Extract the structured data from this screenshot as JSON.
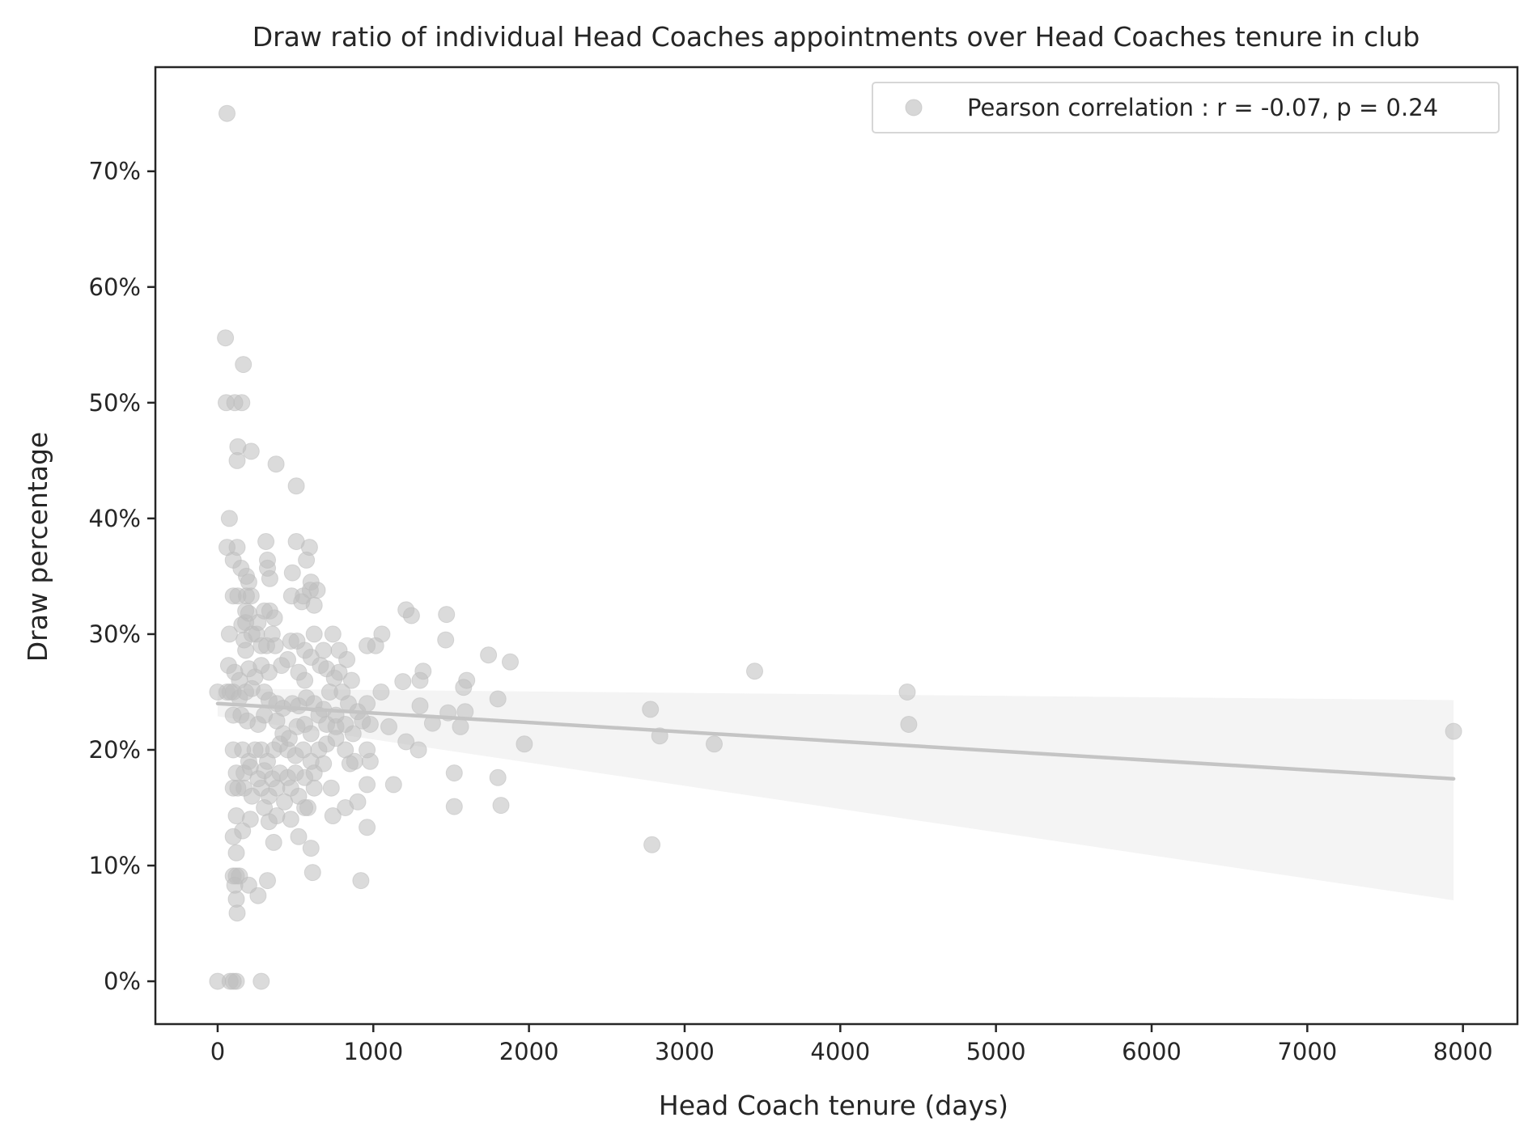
{
  "chart_data": {
    "type": "scatter",
    "title": "Draw ratio of individual Head Coaches appointments over Head Coaches tenure in club",
    "xlabel": "Head Coach tenure (days)",
    "ylabel": "Draw percentage",
    "xlim": [
      -400,
      8350
    ],
    "ylim": [
      -0.037,
      0.79
    ],
    "xticks": [
      0,
      1000,
      2000,
      3000,
      4000,
      5000,
      6000,
      7000,
      8000
    ],
    "xtick_labels": [
      "0",
      "1000",
      "2000",
      "3000",
      "4000",
      "5000",
      "6000",
      "7000",
      "8000"
    ],
    "yticks": [
      0,
      0.1,
      0.2,
      0.3,
      0.4,
      0.5,
      0.6,
      0.7
    ],
    "ytick_labels": [
      "0%",
      "10%",
      "20%",
      "30%",
      "40%",
      "50%",
      "60%",
      "70%"
    ],
    "grid": false,
    "legend": {
      "placement": "top-right",
      "entries": [
        "Pearson correlation : r = -0.07, p = 0.24"
      ]
    },
    "colors": {
      "points": "#bdbdbd",
      "line": "#c4c4c4",
      "band": "#e6e6e6",
      "axes": "#262626"
    },
    "series": [
      {
        "name": "Pearson correlation : r = -0.07, p = 0.24",
        "points": [
          [
            60,
            0.75
          ],
          [
            50,
            0.556
          ],
          [
            165,
            0.533
          ],
          [
            55,
            0.5
          ],
          [
            110,
            0.5
          ],
          [
            155,
            0.5
          ],
          [
            130,
            0.462
          ],
          [
            125,
            0.45
          ],
          [
            215,
            0.458
          ],
          [
            375,
            0.447
          ],
          [
            505,
            0.428
          ],
          [
            75,
            0.4
          ],
          [
            60,
            0.375
          ],
          [
            125,
            0.375
          ],
          [
            310,
            0.38
          ],
          [
            505,
            0.38
          ],
          [
            590,
            0.375
          ],
          [
            100,
            0.364
          ],
          [
            150,
            0.357
          ],
          [
            320,
            0.364
          ],
          [
            320,
            0.357
          ],
          [
            480,
            0.353
          ],
          [
            570,
            0.364
          ],
          [
            185,
            0.35
          ],
          [
            200,
            0.345
          ],
          [
            335,
            0.348
          ],
          [
            600,
            0.345
          ],
          [
            640,
            0.338
          ],
          [
            100,
            0.333
          ],
          [
            130,
            0.333
          ],
          [
            185,
            0.333
          ],
          [
            215,
            0.333
          ],
          [
            475,
            0.333
          ],
          [
            550,
            0.333
          ],
          [
            595,
            0.338
          ],
          [
            180,
            0.32
          ],
          [
            200,
            0.318
          ],
          [
            260,
            0.31
          ],
          [
            300,
            0.32
          ],
          [
            335,
            0.32
          ],
          [
            365,
            0.314
          ],
          [
            180,
            0.31
          ],
          [
            155,
            0.308
          ],
          [
            540,
            0.328
          ],
          [
            620,
            0.325
          ],
          [
            1210,
            0.321
          ],
          [
            1245,
            0.316
          ],
          [
            1470,
            0.317
          ],
          [
            75,
            0.3
          ],
          [
            170,
            0.295
          ],
          [
            180,
            0.286
          ],
          [
            220,
            0.3
          ],
          [
            250,
            0.3
          ],
          [
            280,
            0.29
          ],
          [
            315,
            0.29
          ],
          [
            350,
            0.3
          ],
          [
            370,
            0.29
          ],
          [
            470,
            0.294
          ],
          [
            510,
            0.294
          ],
          [
            560,
            0.286
          ],
          [
            620,
            0.3
          ],
          [
            680,
            0.286
          ],
          [
            740,
            0.3
          ],
          [
            780,
            0.286
          ],
          [
            960,
            0.29
          ],
          [
            1015,
            0.29
          ],
          [
            1055,
            0.3
          ],
          [
            1465,
            0.295
          ],
          [
            1740,
            0.282
          ],
          [
            1880,
            0.276
          ],
          [
            70,
            0.273
          ],
          [
            110,
            0.267
          ],
          [
            140,
            0.26
          ],
          [
            200,
            0.27
          ],
          [
            240,
            0.263
          ],
          [
            280,
            0.273
          ],
          [
            330,
            0.267
          ],
          [
            410,
            0.273
          ],
          [
            450,
            0.278
          ],
          [
            520,
            0.267
          ],
          [
            560,
            0.26
          ],
          [
            600,
            0.28
          ],
          [
            660,
            0.273
          ],
          [
            700,
            0.27
          ],
          [
            750,
            0.262
          ],
          [
            780,
            0.267
          ],
          [
            830,
            0.278
          ],
          [
            860,
            0.26
          ],
          [
            1320,
            0.268
          ],
          [
            1600,
            0.26
          ],
          [
            1580,
            0.254
          ],
          [
            3450,
            0.268
          ],
          [
            0,
            0.25
          ],
          [
            60,
            0.25
          ],
          [
            80,
            0.25
          ],
          [
            100,
            0.25
          ],
          [
            140,
            0.245
          ],
          [
            180,
            0.25
          ],
          [
            220,
            0.253
          ],
          [
            300,
            0.25
          ],
          [
            330,
            0.243
          ],
          [
            380,
            0.24
          ],
          [
            420,
            0.236
          ],
          [
            480,
            0.24
          ],
          [
            520,
            0.238
          ],
          [
            570,
            0.245
          ],
          [
            620,
            0.24
          ],
          [
            680,
            0.235
          ],
          [
            720,
            0.25
          ],
          [
            760,
            0.23
          ],
          [
            800,
            0.25
          ],
          [
            840,
            0.24
          ],
          [
            900,
            0.233
          ],
          [
            960,
            0.24
          ],
          [
            1050,
            0.25
          ],
          [
            1190,
            0.259
          ],
          [
            1300,
            0.26
          ],
          [
            1800,
            0.244
          ],
          [
            4430,
            0.25
          ],
          [
            100,
            0.23
          ],
          [
            150,
            0.23
          ],
          [
            190,
            0.225
          ],
          [
            260,
            0.222
          ],
          [
            300,
            0.23
          ],
          [
            380,
            0.225
          ],
          [
            420,
            0.214
          ],
          [
            460,
            0.21
          ],
          [
            510,
            0.22
          ],
          [
            560,
            0.222
          ],
          [
            600,
            0.214
          ],
          [
            650,
            0.23
          ],
          [
            700,
            0.222
          ],
          [
            760,
            0.22
          ],
          [
            820,
            0.222
          ],
          [
            870,
            0.214
          ],
          [
            930,
            0.225
          ],
          [
            980,
            0.222
          ],
          [
            1100,
            0.22
          ],
          [
            1300,
            0.238
          ],
          [
            1380,
            0.223
          ],
          [
            1480,
            0.232
          ],
          [
            1560,
            0.22
          ],
          [
            1590,
            0.233
          ],
          [
            2780,
            0.235
          ],
          [
            2840,
            0.212
          ],
          [
            4440,
            0.222
          ],
          [
            7940,
            0.216
          ],
          [
            100,
            0.2
          ],
          [
            160,
            0.2
          ],
          [
            200,
            0.19
          ],
          [
            240,
            0.2
          ],
          [
            280,
            0.2
          ],
          [
            320,
            0.19
          ],
          [
            360,
            0.2
          ],
          [
            400,
            0.205
          ],
          [
            450,
            0.2
          ],
          [
            500,
            0.195
          ],
          [
            550,
            0.2
          ],
          [
            600,
            0.19
          ],
          [
            650,
            0.2
          ],
          [
            700,
            0.205
          ],
          [
            760,
            0.21
          ],
          [
            820,
            0.2
          ],
          [
            880,
            0.19
          ],
          [
            960,
            0.2
          ],
          [
            980,
            0.19
          ],
          [
            1210,
            0.207
          ],
          [
            1290,
            0.2
          ],
          [
            1970,
            0.205
          ],
          [
            3190,
            0.205
          ],
          [
            120,
            0.18
          ],
          [
            170,
            0.18
          ],
          [
            210,
            0.185
          ],
          [
            260,
            0.175
          ],
          [
            300,
            0.182
          ],
          [
            350,
            0.175
          ],
          [
            400,
            0.18
          ],
          [
            450,
            0.176
          ],
          [
            500,
            0.18
          ],
          [
            560,
            0.176
          ],
          [
            620,
            0.18
          ],
          [
            680,
            0.188
          ],
          [
            850,
            0.188
          ],
          [
            1520,
            0.18
          ],
          [
            1800,
            0.176
          ],
          [
            100,
            0.167
          ],
          [
            130,
            0.167
          ],
          [
            170,
            0.167
          ],
          [
            220,
            0.16
          ],
          [
            280,
            0.167
          ],
          [
            330,
            0.16
          ],
          [
            380,
            0.167
          ],
          [
            430,
            0.155
          ],
          [
            470,
            0.167
          ],
          [
            520,
            0.16
          ],
          [
            560,
            0.15
          ],
          [
            620,
            0.167
          ],
          [
            730,
            0.167
          ],
          [
            960,
            0.17
          ],
          [
            1130,
            0.17
          ],
          [
            120,
            0.143
          ],
          [
            160,
            0.13
          ],
          [
            210,
            0.14
          ],
          [
            300,
            0.15
          ],
          [
            330,
            0.138
          ],
          [
            380,
            0.143
          ],
          [
            470,
            0.14
          ],
          [
            520,
            0.125
          ],
          [
            580,
            0.15
          ],
          [
            740,
            0.143
          ],
          [
            820,
            0.15
          ],
          [
            900,
            0.155
          ],
          [
            960,
            0.133
          ],
          [
            1520,
            0.151
          ],
          [
            1820,
            0.152
          ],
          [
            2790,
            0.118
          ],
          [
            100,
            0.125
          ],
          [
            120,
            0.111
          ],
          [
            360,
            0.12
          ],
          [
            600,
            0.115
          ],
          [
            100,
            0.091
          ],
          [
            120,
            0.091
          ],
          [
            140,
            0.091
          ],
          [
            110,
            0.083
          ],
          [
            200,
            0.083
          ],
          [
            320,
            0.087
          ],
          [
            610,
            0.094
          ],
          [
            920,
            0.087
          ],
          [
            120,
            0.071
          ],
          [
            260,
            0.074
          ],
          [
            125,
            0.059
          ],
          [
            0,
            0.0
          ],
          [
            80,
            0.0
          ],
          [
            100,
            0.0
          ],
          [
            120,
            0.0
          ],
          [
            280,
            0.0
          ]
        ]
      }
    ],
    "regression": {
      "x": [
        0,
        7940
      ],
      "y": [
        0.24,
        0.175
      ],
      "ci_upper": [
        0.253,
        0.243
      ],
      "ci_lower": [
        0.229,
        0.07
      ]
    }
  }
}
